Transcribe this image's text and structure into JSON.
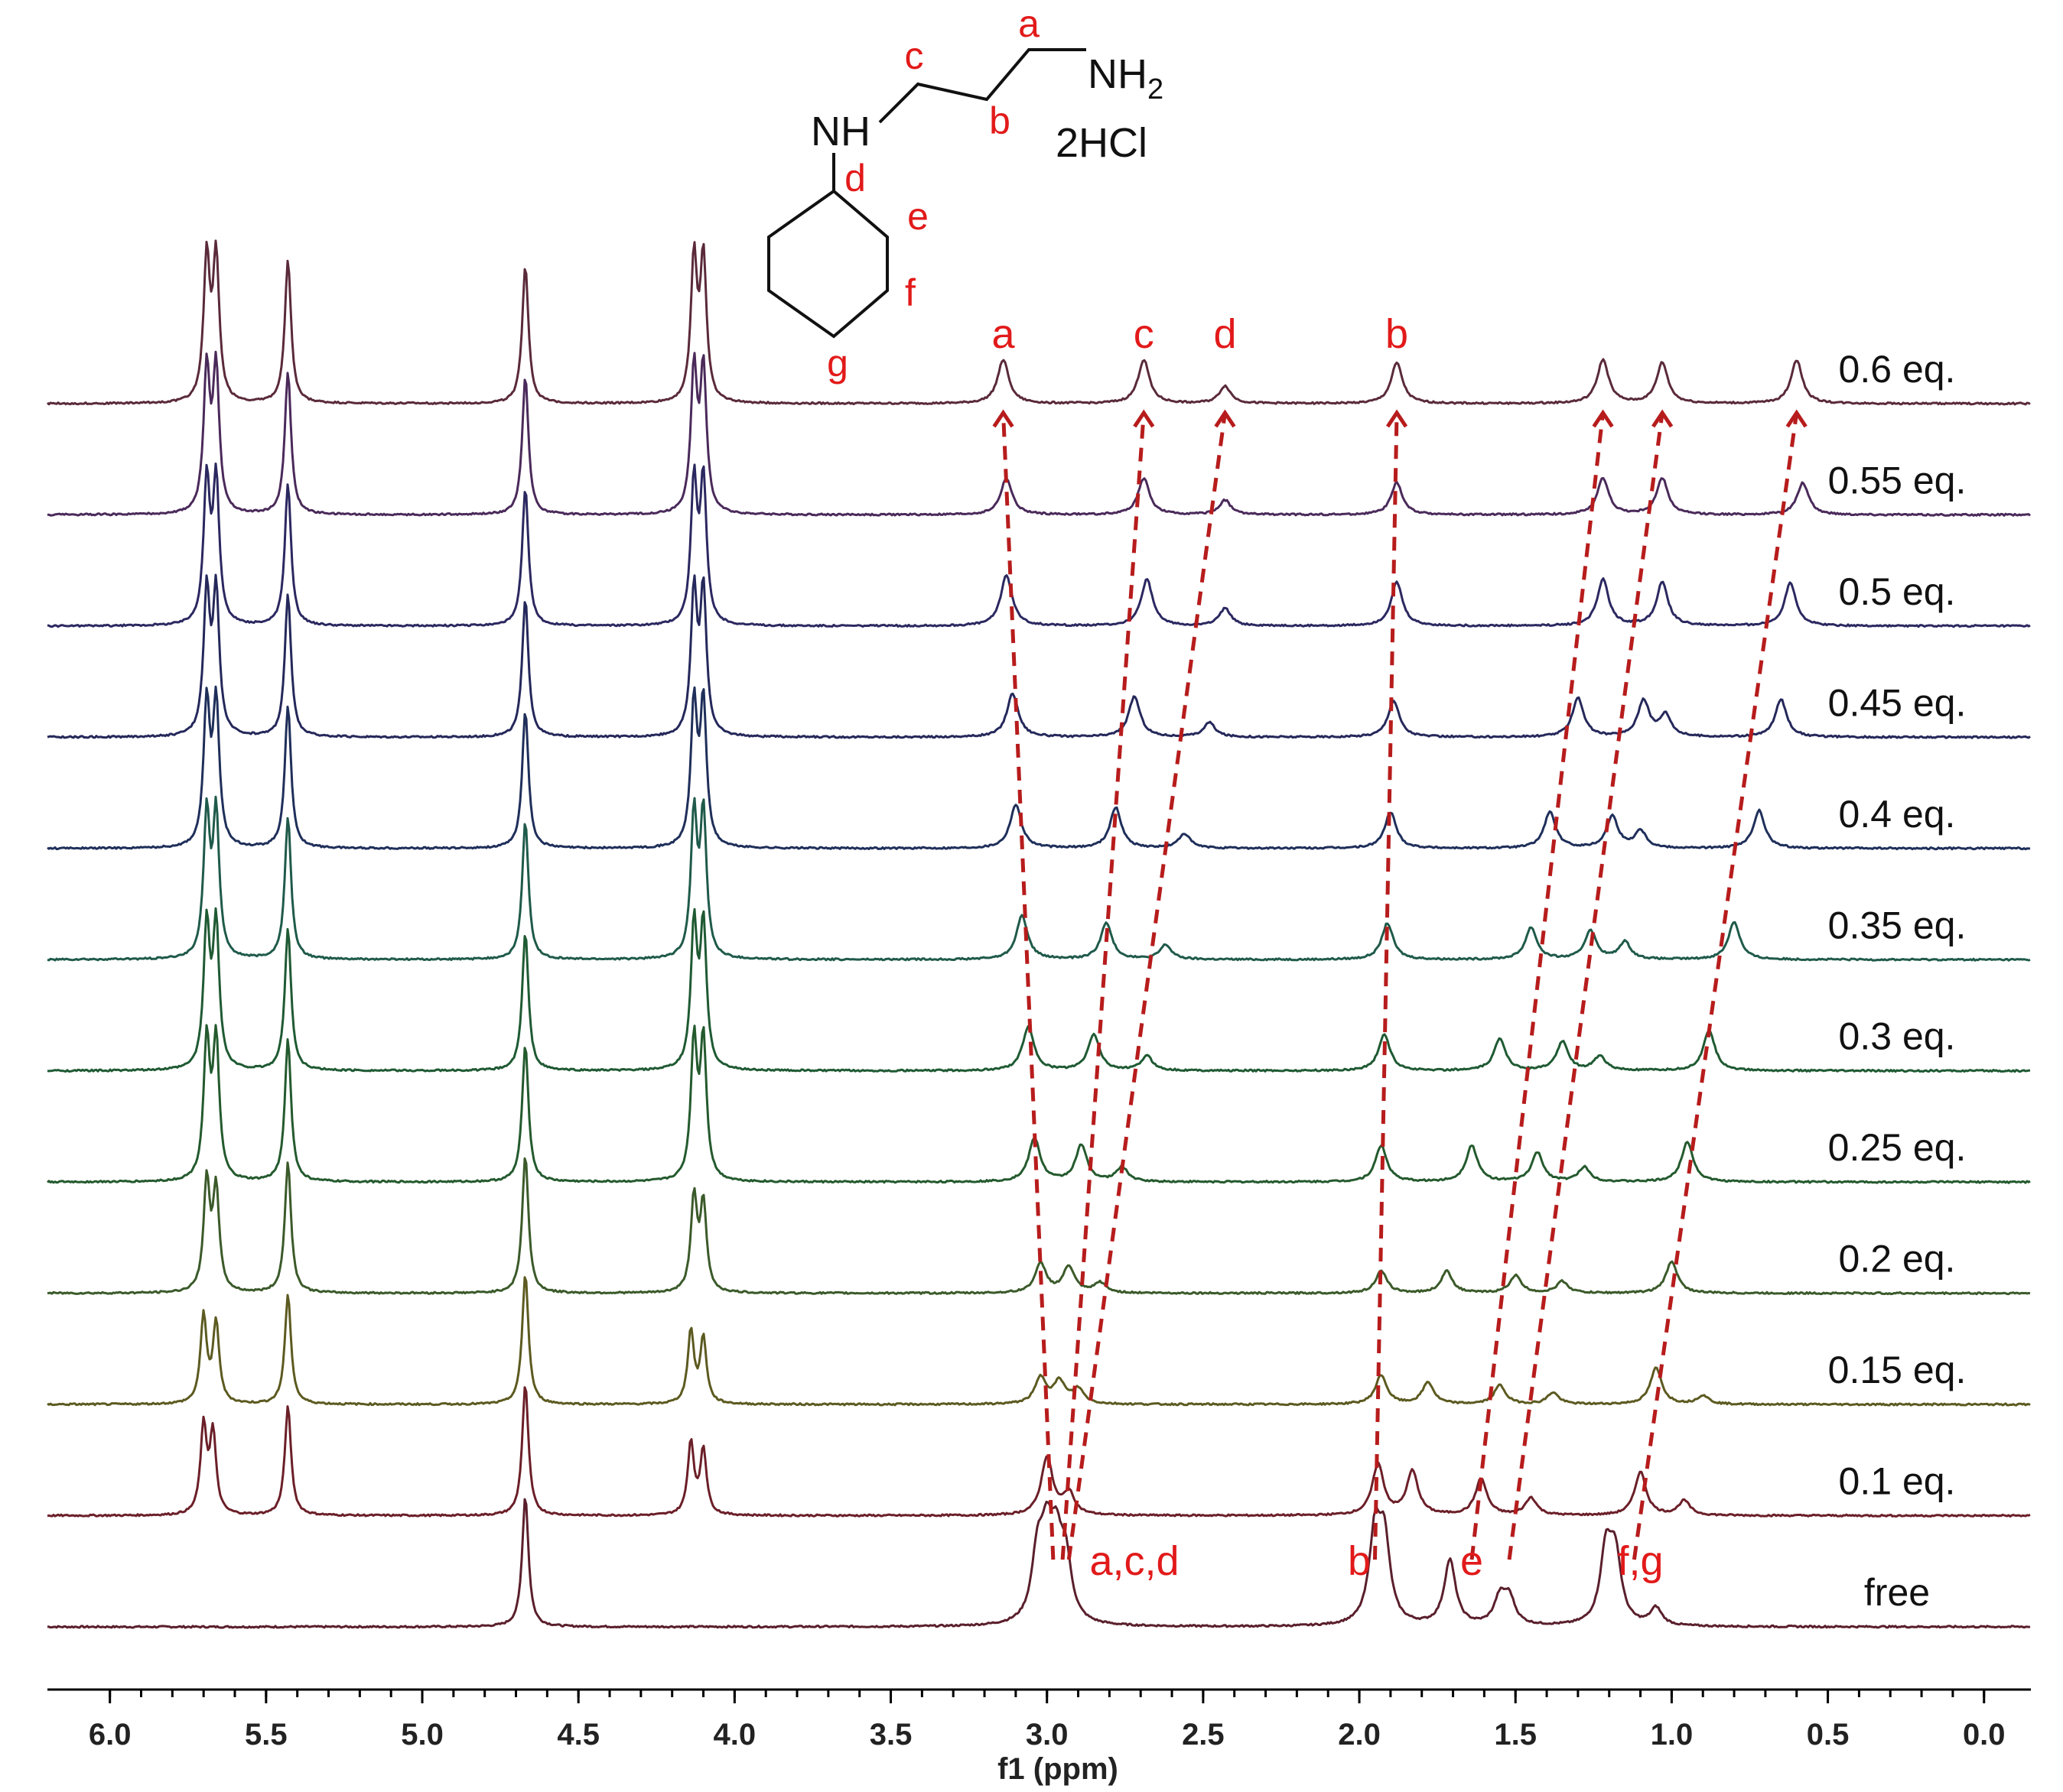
{
  "chart_data": {
    "type": "line",
    "title": "",
    "xlabel": "f1 (ppm)",
    "ylabel": "",
    "xlim": [
      6.2,
      -0.15
    ],
    "x_reversed": true,
    "x_ticks": [
      "6.0",
      "5.5",
      "5.0",
      "4.5",
      "4.0",
      "3.5",
      "3.0",
      "2.5",
      "2.0",
      "1.5",
      "1.0",
      "0.5",
      "0.0"
    ],
    "x_tick_values": [
      6.0,
      5.5,
      5.0,
      4.5,
      4.0,
      3.5,
      3.0,
      2.5,
      2.0,
      1.5,
      1.0,
      0.5,
      0.0
    ],
    "series": [
      {
        "name": "free",
        "color": "#5a1f2c",
        "peaks": [
          [
            4.67,
            0.9
          ],
          [
            3.03,
            0.45
          ],
          [
            3.0,
            0.5
          ],
          [
            2.97,
            0.45
          ],
          [
            2.94,
            0.4
          ],
          [
            1.95,
            0.6
          ],
          [
            1.92,
            0.55
          ],
          [
            1.71,
            0.45
          ],
          [
            1.55,
            0.18
          ],
          [
            1.52,
            0.18
          ],
          [
            1.21,
            0.5
          ],
          [
            1.18,
            0.45
          ],
          [
            1.05,
            0.12
          ]
        ]
      },
      {
        "name": "0.1 eq.",
        "color": "#6b1f28",
        "peaks": [
          [
            5.7,
            0.6
          ],
          [
            5.67,
            0.55
          ],
          [
            5.43,
            0.75
          ],
          [
            4.67,
            0.9
          ],
          [
            4.14,
            0.5
          ],
          [
            4.1,
            0.45
          ],
          [
            3.0,
            0.4
          ],
          [
            2.93,
            0.15
          ],
          [
            1.94,
            0.35
          ],
          [
            1.83,
            0.3
          ],
          [
            1.61,
            0.25
          ],
          [
            1.45,
            0.12
          ],
          [
            1.1,
            0.3
          ],
          [
            0.96,
            0.1
          ]
        ]
      },
      {
        "name": "0.15 eq.",
        "color": "#5c5a20",
        "peaks": [
          [
            5.7,
            0.6
          ],
          [
            5.66,
            0.55
          ],
          [
            5.43,
            0.75
          ],
          [
            4.67,
            0.9
          ],
          [
            4.14,
            0.5
          ],
          [
            4.1,
            0.45
          ],
          [
            3.02,
            0.18
          ],
          [
            2.96,
            0.15
          ],
          [
            2.9,
            0.1
          ],
          [
            1.93,
            0.2
          ],
          [
            1.78,
            0.15
          ],
          [
            1.55,
            0.13
          ],
          [
            1.38,
            0.08
          ],
          [
            1.05,
            0.25
          ],
          [
            0.9,
            0.06
          ]
        ]
      },
      {
        "name": "0.2 eq.",
        "color": "#3b5a2a",
        "peaks": [
          [
            5.69,
            0.75
          ],
          [
            5.66,
            0.7
          ],
          [
            5.43,
            0.9
          ],
          [
            4.67,
            0.95
          ],
          [
            4.13,
            0.65
          ],
          [
            4.1,
            0.6
          ],
          [
            3.02,
            0.2
          ],
          [
            2.93,
            0.18
          ],
          [
            2.83,
            0.07
          ],
          [
            1.93,
            0.15
          ],
          [
            1.72,
            0.15
          ],
          [
            1.5,
            0.12
          ],
          [
            1.35,
            0.08
          ],
          [
            1.0,
            0.22
          ]
        ]
      },
      {
        "name": "0.25 eq.",
        "color": "#245a2e",
        "peaks": [
          [
            5.69,
            0.95
          ],
          [
            5.66,
            0.95
          ],
          [
            5.43,
            0.98
          ],
          [
            4.67,
            0.95
          ],
          [
            4.13,
            0.95
          ],
          [
            4.1,
            0.95
          ],
          [
            3.04,
            0.3
          ],
          [
            2.89,
            0.25
          ],
          [
            2.76,
            0.1
          ],
          [
            1.93,
            0.25
          ],
          [
            1.64,
            0.25
          ],
          [
            1.43,
            0.2
          ],
          [
            1.28,
            0.1
          ],
          [
            0.95,
            0.28
          ]
        ]
      },
      {
        "name": "0.3 eq.",
        "color": "#1f5a33",
        "peaks": [
          [
            5.69,
            0.98
          ],
          [
            5.66,
            0.98
          ],
          [
            5.43,
            0.98
          ],
          [
            4.67,
            0.95
          ],
          [
            4.13,
            0.98
          ],
          [
            4.1,
            0.98
          ],
          [
            3.06,
            0.3
          ],
          [
            2.85,
            0.25
          ],
          [
            2.68,
            0.1
          ],
          [
            1.92,
            0.25
          ],
          [
            1.55,
            0.22
          ],
          [
            1.35,
            0.2
          ],
          [
            1.23,
            0.1
          ],
          [
            0.88,
            0.28
          ]
        ]
      },
      {
        "name": "0.35 eq.",
        "color": "#1f5a4a",
        "peaks": [
          [
            5.69,
            0.98
          ],
          [
            5.66,
            0.98
          ],
          [
            5.43,
            0.98
          ],
          [
            4.67,
            0.95
          ],
          [
            4.13,
            0.98
          ],
          [
            4.1,
            0.98
          ],
          [
            3.08,
            0.3
          ],
          [
            2.81,
            0.25
          ],
          [
            2.62,
            0.1
          ],
          [
            1.91,
            0.25
          ],
          [
            1.45,
            0.22
          ],
          [
            1.26,
            0.2
          ],
          [
            1.15,
            0.12
          ],
          [
            0.8,
            0.26
          ]
        ]
      },
      {
        "name": "0.4 eq.",
        "color": "#1f2f5a",
        "peaks": [
          [
            5.69,
            0.98
          ],
          [
            5.66,
            0.98
          ],
          [
            5.43,
            0.98
          ],
          [
            4.67,
            0.95
          ],
          [
            4.13,
            0.98
          ],
          [
            4.1,
            0.98
          ],
          [
            3.1,
            0.3
          ],
          [
            2.78,
            0.28
          ],
          [
            2.56,
            0.1
          ],
          [
            1.9,
            0.25
          ],
          [
            1.39,
            0.25
          ],
          [
            1.19,
            0.22
          ],
          [
            1.1,
            0.12
          ],
          [
            0.72,
            0.26
          ]
        ]
      },
      {
        "name": "0.45 eq.",
        "color": "#25285a",
        "peaks": [
          [
            5.69,
            0.98
          ],
          [
            5.66,
            0.98
          ],
          [
            5.43,
            0.98
          ],
          [
            4.67,
            0.95
          ],
          [
            4.13,
            0.98
          ],
          [
            4.1,
            0.98
          ],
          [
            3.11,
            0.3
          ],
          [
            2.72,
            0.28
          ],
          [
            2.48,
            0.1
          ],
          [
            1.89,
            0.25
          ],
          [
            1.3,
            0.27
          ],
          [
            1.09,
            0.25
          ],
          [
            1.02,
            0.15
          ],
          [
            0.65,
            0.26
          ]
        ]
      },
      {
        "name": "0.5 eq.",
        "color": "#2b2860",
        "peaks": [
          [
            5.69,
            0.98
          ],
          [
            5.66,
            0.98
          ],
          [
            5.43,
            0.98
          ],
          [
            4.67,
            0.95
          ],
          [
            4.13,
            0.98
          ],
          [
            4.1,
            0.98
          ],
          [
            3.13,
            0.35
          ],
          [
            2.68,
            0.32
          ],
          [
            2.43,
            0.12
          ],
          [
            1.88,
            0.3
          ],
          [
            1.22,
            0.32
          ],
          [
            1.03,
            0.3
          ],
          [
            0.62,
            0.3
          ]
        ]
      },
      {
        "name": "0.55 eq.",
        "color": "#4a2a5a",
        "peaks": [
          [
            5.69,
            0.98
          ],
          [
            5.66,
            0.98
          ],
          [
            5.43,
            0.98
          ],
          [
            4.67,
            0.95
          ],
          [
            4.13,
            0.98
          ],
          [
            4.1,
            0.98
          ],
          [
            3.13,
            0.25
          ],
          [
            2.69,
            0.25
          ],
          [
            2.43,
            0.1
          ],
          [
            1.88,
            0.22
          ],
          [
            1.22,
            0.25
          ],
          [
            1.03,
            0.25
          ],
          [
            0.58,
            0.22
          ]
        ]
      },
      {
        "name": "0.6 eq.",
        "color": "#5a2a3a",
        "peaks": [
          [
            5.69,
            0.98
          ],
          [
            5.66,
            0.98
          ],
          [
            5.43,
            0.98
          ],
          [
            4.67,
            0.95
          ],
          [
            4.13,
            0.98
          ],
          [
            4.1,
            0.98
          ],
          [
            3.14,
            0.3
          ],
          [
            2.69,
            0.3
          ],
          [
            2.43,
            0.12
          ],
          [
            1.88,
            0.28
          ],
          [
            1.22,
            0.3
          ],
          [
            1.03,
            0.28
          ],
          [
            0.6,
            0.3
          ]
        ]
      }
    ],
    "peak_labels_top": [
      {
        "text": "a",
        "ppm": 3.14
      },
      {
        "text": "c",
        "ppm": 2.69
      },
      {
        "text": "d",
        "ppm": 2.43
      },
      {
        "text": "b",
        "ppm": 1.88
      }
    ],
    "peak_labels_free": [
      {
        "text": "a,c,d",
        "ppm": 2.72
      },
      {
        "text": "b",
        "ppm": 2.0
      },
      {
        "text": "e",
        "ppm": 1.64
      },
      {
        "text": "f,g",
        "ppm": 1.1
      }
    ],
    "shift_lines": [
      {
        "from": 2.98,
        "to": 3.14
      },
      {
        "from": 2.95,
        "to": 2.69
      },
      {
        "from": 2.93,
        "to": 2.43
      },
      {
        "from": 1.95,
        "to": 1.88
      },
      {
        "from": 1.64,
        "to": 1.22
      },
      {
        "from": 1.52,
        "to": 1.03
      },
      {
        "from": 1.12,
        "to": 0.6
      }
    ]
  },
  "molecule": {
    "nh2": "NH",
    "nh2_sub": "2",
    "nh": "NH",
    "salt": "2HCl",
    "labels": {
      "a": "a",
      "b": "b",
      "c": "c",
      "d": "d",
      "e": "e",
      "f": "f",
      "g": "g"
    }
  }
}
